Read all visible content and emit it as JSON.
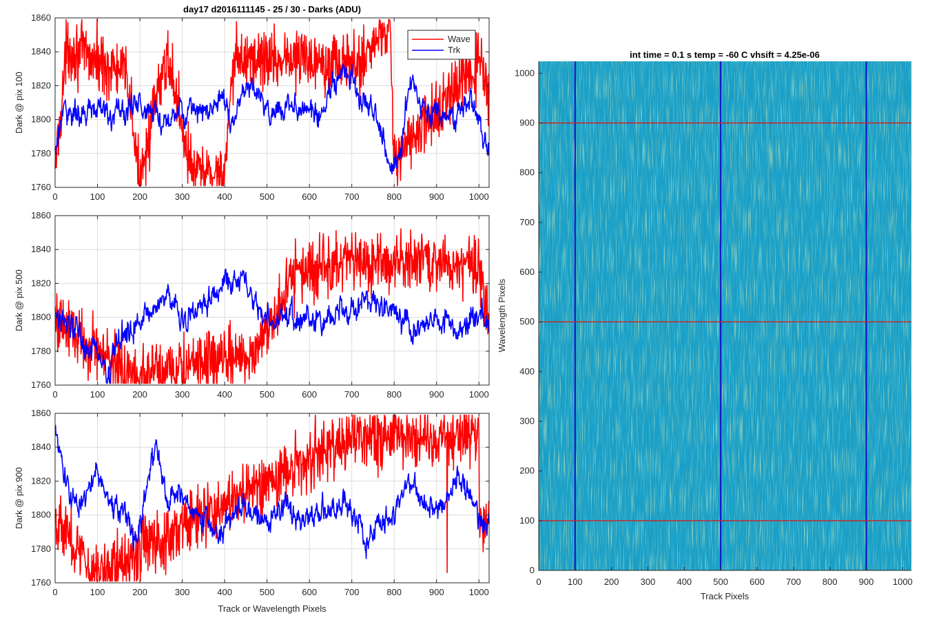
{
  "figure": {
    "title": "day17 d2016111145 - 25 / 30 - Darks (ADU)"
  },
  "colors": {
    "wave": "#ff0000",
    "trk": "#0000ff",
    "grid": "#dcdcdc",
    "axis": "#262626",
    "image_base": "#1aa0c8",
    "image_highlight": "#b0d080"
  },
  "chart_data": [
    {
      "type": "line",
      "id": "panel-pix-100",
      "title": "day17 d2016111145 - 25 / 30 - Darks (ADU)",
      "xlabel": "",
      "ylabel": "Dark @ pix 100",
      "xlim": [
        0,
        1024
      ],
      "ylim": [
        1760,
        1860
      ],
      "xticks": [
        0,
        100,
        200,
        300,
        400,
        500,
        600,
        700,
        800,
        900,
        1000
      ],
      "yticks": [
        1760,
        1780,
        1800,
        1820,
        1840,
        1860
      ],
      "grid": true,
      "legend": {
        "position": "top-right",
        "entries": [
          "Wave",
          "Trk"
        ]
      },
      "series": [
        {
          "name": "Wave",
          "color": "#ff0000",
          "mean": 1801,
          "noise": 9,
          "points": [
            [
              0,
              1771
            ],
            [
              28,
              1843
            ],
            [
              170,
              1826
            ],
            [
              197,
              1766
            ],
            [
              265,
              1838
            ],
            [
              325,
              1767
            ],
            [
              400,
              1769
            ],
            [
              425,
              1836
            ],
            [
              648,
              1836
            ],
            [
              710,
              1831
            ],
            [
              790,
              1858
            ],
            [
              800,
              1776
            ],
            [
              1005,
              1834
            ],
            [
              1024,
              1808
            ]
          ]
        },
        {
          "name": "Trk",
          "color": "#0000ff",
          "mean": 1800,
          "noise": 4,
          "points": [
            [
              0,
              1782
            ],
            [
              20,
              1806
            ],
            [
              60,
              1802
            ],
            [
              100,
              1806
            ],
            [
              150,
              1802
            ],
            [
              200,
              1810
            ],
            [
              250,
              1800
            ],
            [
              300,
              1806
            ],
            [
              350,
              1803
            ],
            [
              390,
              1812
            ],
            [
              420,
              1798
            ],
            [
              450,
              1822
            ],
            [
              480,
              1816
            ],
            [
              500,
              1805
            ],
            [
              550,
              1806
            ],
            [
              600,
              1807
            ],
            [
              620,
              1802
            ],
            [
              650,
              1815
            ],
            [
              675,
              1828
            ],
            [
              700,
              1823
            ],
            [
              720,
              1816
            ],
            [
              750,
              1806
            ],
            [
              770,
              1800
            ],
            [
              780,
              1782
            ],
            [
              795,
              1770
            ],
            [
              815,
              1778
            ],
            [
              830,
              1814
            ],
            [
              845,
              1824
            ],
            [
              860,
              1808
            ],
            [
              900,
              1802
            ],
            [
              940,
              1802
            ],
            [
              960,
              1806
            ],
            [
              985,
              1812
            ],
            [
              1010,
              1790
            ],
            [
              1024,
              1776
            ]
          ]
        }
      ]
    },
    {
      "type": "line",
      "id": "panel-pix-500",
      "xlabel": "",
      "ylabel": "Dark @ pix 500",
      "xlim": [
        0,
        1024
      ],
      "ylim": [
        1760,
        1860
      ],
      "xticks": [
        0,
        100,
        200,
        300,
        400,
        500,
        600,
        700,
        800,
        900,
        1000
      ],
      "yticks": [
        1760,
        1780,
        1800,
        1820,
        1840,
        1860
      ],
      "grid": true,
      "series": [
        {
          "name": "Wave",
          "color": "#ff0000",
          "mean": 1801,
          "noise": 9,
          "points": [
            [
              0,
              1800
            ],
            [
              180,
              1765
            ],
            [
              462,
              1777
            ],
            [
              575,
              1828
            ],
            [
              780,
              1833
            ],
            [
              1000,
              1832
            ],
            [
              1024,
              1800
            ]
          ]
        },
        {
          "name": "Trk",
          "color": "#0000ff",
          "mean": 1800,
          "noise": 4,
          "points": [
            [
              0,
              1803
            ],
            [
              40,
              1796
            ],
            [
              70,
              1780
            ],
            [
              90,
              1787
            ],
            [
              110,
              1772
            ],
            [
              125,
              1766
            ],
            [
              150,
              1788
            ],
            [
              200,
              1799
            ],
            [
              250,
              1806
            ],
            [
              270,
              1815
            ],
            [
              300,
              1798
            ],
            [
              350,
              1808
            ],
            [
              400,
              1820
            ],
            [
              440,
              1825
            ],
            [
              460,
              1812
            ],
            [
              500,
              1797
            ],
            [
              550,
              1800
            ],
            [
              600,
              1797
            ],
            [
              650,
              1800
            ],
            [
              700,
              1803
            ],
            [
              730,
              1812
            ],
            [
              760,
              1811
            ],
            [
              800,
              1803
            ],
            [
              850,
              1793
            ],
            [
              900,
              1800
            ],
            [
              950,
              1793
            ],
            [
              1000,
              1802
            ],
            [
              1024,
              1800
            ]
          ]
        }
      ]
    },
    {
      "type": "line",
      "id": "panel-pix-900",
      "xlabel": "Track or Wavelength Pixels",
      "ylabel": "Dark @ pix 900",
      "xlim": [
        0,
        1024
      ],
      "ylim": [
        1760,
        1860
      ],
      "xticks": [
        0,
        100,
        200,
        300,
        400,
        500,
        600,
        700,
        800,
        900,
        1000
      ],
      "yticks": [
        1760,
        1780,
        1800,
        1820,
        1840,
        1860
      ],
      "grid": true,
      "series": [
        {
          "name": "Wave",
          "color": "#ff0000",
          "mean": 1800,
          "noise": 9,
          "points": [
            [
              0,
              1800
            ],
            [
              92,
              1765
            ],
            [
              700,
              1846
            ],
            [
              1000,
              1848
            ],
            [
              925,
              1766
            ],
            [
              1024,
              1800
            ]
          ]
        },
        {
          "name": "Trk",
          "color": "#0000ff",
          "mean": 1800,
          "noise": 4,
          "points": [
            [
              0,
              1847
            ],
            [
              10,
              1838
            ],
            [
              30,
              1814
            ],
            [
              50,
              1804
            ],
            [
              80,
              1810
            ],
            [
              90,
              1828
            ],
            [
              110,
              1818
            ],
            [
              140,
              1804
            ],
            [
              170,
              1799
            ],
            [
              190,
              1786
            ],
            [
              210,
              1808
            ],
            [
              230,
              1830
            ],
            [
              240,
              1842
            ],
            [
              260,
              1810
            ],
            [
              300,
              1812
            ],
            [
              320,
              1805
            ],
            [
              350,
              1797
            ],
            [
              390,
              1788
            ],
            [
              410,
              1800
            ],
            [
              450,
              1804
            ],
            [
              500,
              1797
            ],
            [
              550,
              1808
            ],
            [
              580,
              1796
            ],
            [
              620,
              1802
            ],
            [
              650,
              1806
            ],
            [
              700,
              1803
            ],
            [
              720,
              1800
            ],
            [
              730,
              1782
            ],
            [
              750,
              1792
            ],
            [
              800,
              1800
            ],
            [
              830,
              1820
            ],
            [
              860,
              1812
            ],
            [
              900,
              1802
            ],
            [
              950,
              1820
            ],
            [
              1000,
              1803
            ],
            [
              1024,
              1798
            ]
          ]
        }
      ]
    },
    {
      "type": "heatmap",
      "id": "image-panel",
      "title": "int time = 0.1 s   temp = -60 C   vhsift = 4.25e-06",
      "xlabel": "Track Pixels",
      "ylabel": "Wavelength Pixels",
      "xlim": [
        0,
        1024
      ],
      "ylim": [
        0,
        1024
      ],
      "xticks": [
        0,
        100,
        200,
        300,
        400,
        500,
        600,
        700,
        800,
        900,
        1000
      ],
      "yticks": [
        0,
        100,
        200,
        300,
        400,
        500,
        600,
        700,
        800,
        900,
        1000
      ],
      "grid": false,
      "vertical_markers": [
        100,
        500,
        900
      ],
      "horizontal_markers": [
        100,
        500,
        900
      ]
    }
  ]
}
